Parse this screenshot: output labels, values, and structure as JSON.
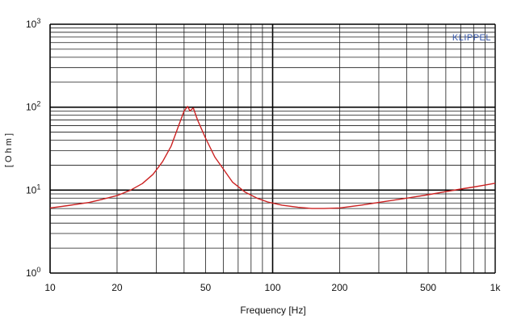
{
  "chart_data": {
    "type": "line",
    "xlabel": "Frequency [Hz]",
    "ylabel": "[ O h m ]",
    "x_scale": "log",
    "y_scale": "log",
    "xlim": [
      10,
      1000
    ],
    "ylim": [
      1,
      1000
    ],
    "grid": true,
    "x_ticks": [
      {
        "value": 10,
        "label": "10"
      },
      {
        "value": 20,
        "label": "20"
      },
      {
        "value": 50,
        "label": "50"
      },
      {
        "value": 100,
        "label": "100"
      },
      {
        "value": 200,
        "label": "200"
      },
      {
        "value": 500,
        "label": "500"
      },
      {
        "value": 1000,
        "label": "1k"
      }
    ],
    "y_ticks": [
      {
        "value": 1,
        "base": "10",
        "exp": "0"
      },
      {
        "value": 10,
        "base": "10",
        "exp": "1"
      },
      {
        "value": 100,
        "base": "10",
        "exp": "2"
      },
      {
        "value": 1000,
        "base": "10",
        "exp": "3"
      }
    ],
    "watermark": "KLIPPEL",
    "series": [
      {
        "color": "#cc2222",
        "x": [
          10,
          12,
          15,
          18,
          20,
          23,
          26,
          29,
          32,
          35,
          38,
          40,
          41.5,
          42.5,
          44,
          46,
          50,
          55,
          60,
          66,
          75,
          85,
          95,
          110,
          130,
          150,
          170,
          200,
          250,
          300,
          400,
          500,
          600,
          700,
          800,
          900,
          1000
        ],
        "y": [
          6.1,
          6.5,
          7.1,
          8.0,
          8.6,
          10.0,
          12.0,
          15.5,
          22.0,
          34.0,
          62.0,
          90.0,
          102.0,
          90.0,
          98.0,
          70.0,
          42.0,
          25.0,
          18.0,
          12.5,
          9.5,
          8.0,
          7.2,
          6.6,
          6.2,
          6.0,
          6.0,
          6.1,
          6.6,
          7.1,
          8.0,
          8.8,
          9.6,
          10.3,
          10.9,
          11.5,
          12.1
        ]
      }
    ],
    "colors": {
      "grid": "#1a1a1a",
      "major_grid": "#000000",
      "axis_text": "#111111",
      "watermark": "#3355aa"
    }
  }
}
